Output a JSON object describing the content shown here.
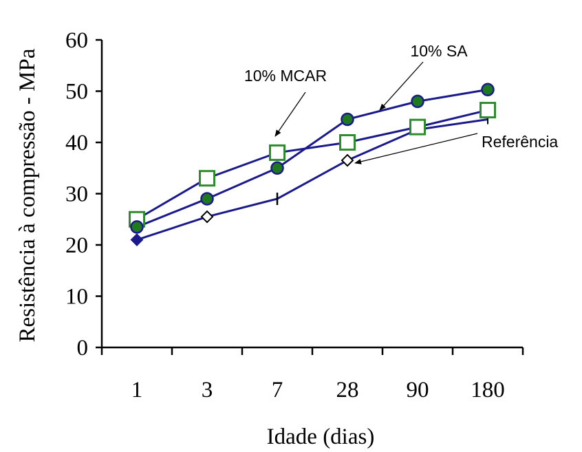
{
  "chart_data": {
    "type": "line",
    "title": "",
    "xlabel": "Idade (dias)",
    "ylabel": "Resistência à compressão - MPa",
    "categories": [
      "1",
      "3",
      "7",
      "28",
      "90",
      "180"
    ],
    "ylim": [
      0,
      60
    ],
    "yticks": [
      0,
      10,
      20,
      30,
      40,
      50,
      60
    ],
    "grid": false,
    "legend": "none",
    "series": [
      {
        "name": "10% SA",
        "values": [
          23.5,
          29,
          35,
          44.5,
          48,
          50.3
        ],
        "marker": "circle",
        "color": "#1a1a8c",
        "marker_fill": "#1f7a1f"
      },
      {
        "name": "10% MCAR",
        "values": [
          25,
          33,
          38,
          40,
          43,
          46.3
        ],
        "marker": "square",
        "color": "#1a1a8c",
        "marker_fill": "#ffffff",
        "marker_stroke": "#2e8b2e"
      },
      {
        "name": "Referência",
        "values": [
          21,
          25.5,
          29,
          36.5,
          42.5,
          44.5
        ],
        "marker": "diamond",
        "color": "#1a1a8c",
        "marker_fill": "#ffffff",
        "marker_stroke": "#000000"
      }
    ],
    "annotations": [
      {
        "text": "10% MCAR",
        "series": "10% MCAR",
        "category": "7"
      },
      {
        "text": "10% SA",
        "series": "10% SA",
        "category": "28"
      },
      {
        "text": "Referência",
        "series": "Referência",
        "category": "28"
      }
    ]
  }
}
